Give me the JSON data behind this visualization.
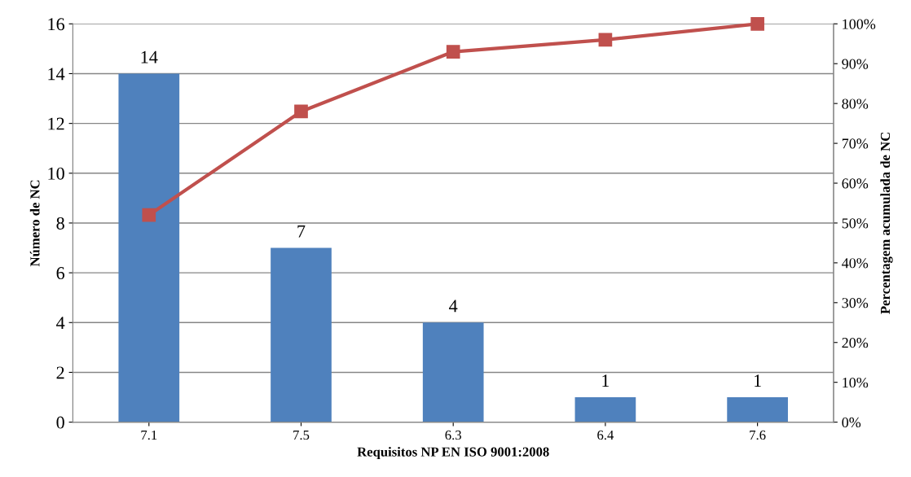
{
  "chart_data": {
    "type": "bar",
    "xlabel": "Requisitos NP EN ISO 9001:2008",
    "ylabel": "Número de NC",
    "y2label": "Percentagem acumulada de NC",
    "categories": [
      "7.1",
      "7.5",
      "6.3",
      "6.4",
      "7.6"
    ],
    "series": [
      {
        "color": "#4f81bd",
        "values": [
          14,
          7,
          4,
          1,
          1
        ],
        "data_labels": true
      },
      {
        "type": "line",
        "axis": "y2",
        "color": "#c0504d",
        "marker": "square",
        "values": [
          52,
          78,
          93,
          96,
          100
        ]
      }
    ],
    "ylim": [
      0,
      16
    ],
    "yticks": [
      0,
      2,
      4,
      6,
      8,
      10,
      12,
      14,
      16
    ],
    "y2lim": [
      0,
      100
    ],
    "y2ticks": [
      {
        "value": 0,
        "label": "0%"
      },
      {
        "value": 10,
        "label": "10%"
      },
      {
        "value": 20,
        "label": "20%"
      },
      {
        "value": 30,
        "label": "30%"
      },
      {
        "value": 40,
        "label": "40%"
      },
      {
        "value": 50,
        "label": "50%"
      },
      {
        "value": 60,
        "label": "60%"
      },
      {
        "value": 70,
        "label": "70%"
      },
      {
        "value": 80,
        "label": "80%"
      },
      {
        "value": 90,
        "label": "90%"
      },
      {
        "value": 100,
        "label": "100%"
      }
    ],
    "grid": "y"
  }
}
